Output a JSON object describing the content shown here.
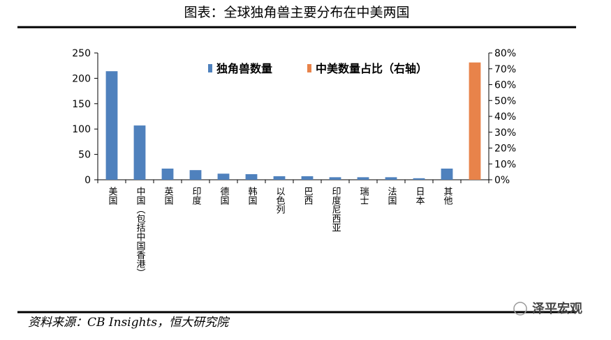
{
  "chart_data": {
    "type": "bar",
    "title": "图表：全球独角兽主要分布在中美两国",
    "source": "资料来源：CB Insights，恒大研究院",
    "watermark": "泽平宏观",
    "categories": [
      "美国",
      "中国（包括中国香港）",
      "英国",
      "印度",
      "德国",
      "韩国",
      "以色列",
      "巴西",
      "印度尼西亚",
      "瑞士",
      "法国",
      "日本",
      "其他",
      null
    ],
    "series": [
      {
        "name": "独角兽数量",
        "color": "#4f81bd",
        "values": [
          214,
          107,
          22,
          19,
          12,
          11,
          7,
          7,
          5,
          5,
          5,
          3,
          22,
          null
        ]
      },
      {
        "name": "中美数量占比（右轴）",
        "color": "#e8834a",
        "axis": "y2",
        "values": [
          null,
          null,
          null,
          null,
          null,
          null,
          null,
          null,
          null,
          null,
          null,
          null,
          null,
          74
        ]
      }
    ],
    "ylim": [
      0,
      250
    ],
    "yticks": [
      0,
      50,
      100,
      150,
      200,
      250
    ],
    "y2lim": [
      0,
      80
    ],
    "y2ticks": [
      {
        "value": 0,
        "label": "0%"
      },
      {
        "value": 10,
        "label": "10%"
      },
      {
        "value": 20,
        "label": "20%"
      },
      {
        "value": 30,
        "label": "30%"
      },
      {
        "value": 40,
        "label": "40%"
      },
      {
        "value": 50,
        "label": "50%"
      },
      {
        "value": 60,
        "label": "60%"
      },
      {
        "value": 70,
        "label": "70%"
      },
      {
        "value": 80,
        "label": "80%"
      }
    ]
  }
}
